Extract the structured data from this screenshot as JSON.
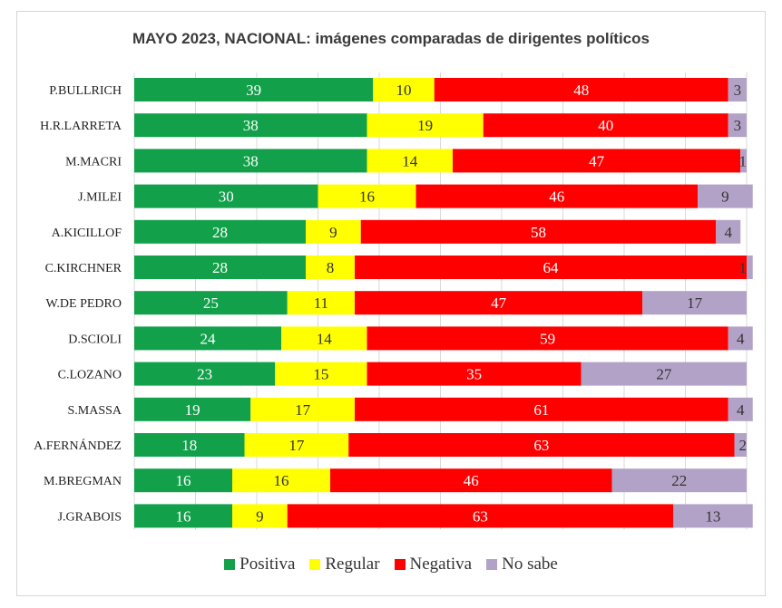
{
  "chart_data": {
    "type": "bar",
    "orientation": "horizontal",
    "stacked": true,
    "title": "MAYO 2023, NACIONAL: imágenes comparadas de dirigentes políticos",
    "xlim": [
      0,
      100
    ],
    "grid": true,
    "legend_position": "bottom",
    "categories": [
      "P.BULLRICH",
      "H.R.LARRETA",
      "M.MACRI",
      "J.MILEI",
      "A.KICILLOF",
      "C.KIRCHNER",
      "W.DE PEDRO",
      "D.SCIOLI",
      "C.LOZANO",
      "S.MASSA",
      "A.FERNÁNDEZ",
      "M.BREGMAN",
      "J.GRABOIS"
    ],
    "series": [
      {
        "name": "Positiva",
        "color": "#12a14a",
        "values": [
          39,
          38,
          38,
          30,
          28,
          28,
          25,
          24,
          23,
          19,
          18,
          16,
          16
        ]
      },
      {
        "name": "Regular",
        "color": "#ffff00",
        "values": [
          10,
          19,
          14,
          16,
          9,
          8,
          11,
          14,
          15,
          17,
          17,
          16,
          9
        ]
      },
      {
        "name": "Negativa",
        "color": "#ff0000",
        "values": [
          48,
          40,
          47,
          46,
          58,
          64,
          47,
          59,
          35,
          61,
          63,
          46,
          63
        ]
      },
      {
        "name": "No sabe",
        "color": "#b3a2c7",
        "values": [
          3,
          3,
          1,
          9,
          4,
          1,
          17,
          4,
          27,
          4,
          2,
          22,
          13
        ]
      }
    ]
  }
}
